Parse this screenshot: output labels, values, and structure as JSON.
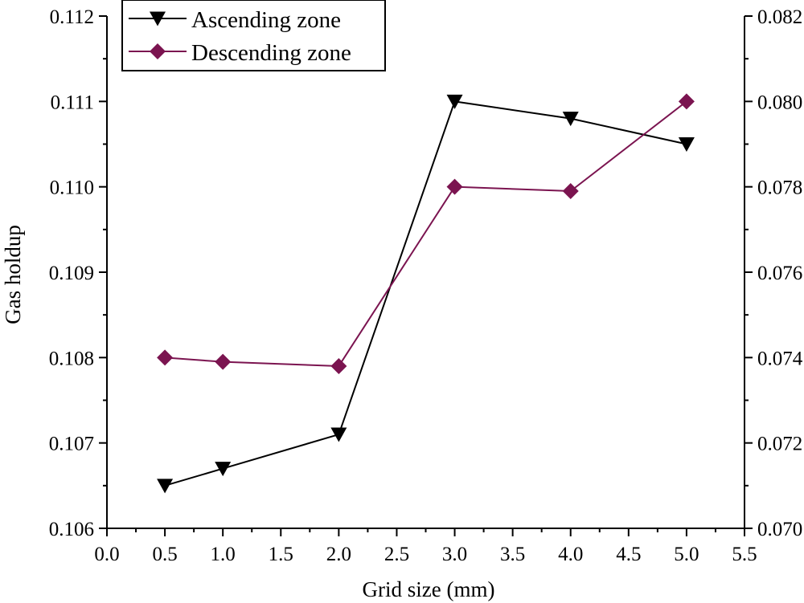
{
  "chart_data": {
    "type": "line",
    "xlabel": "Grid size (mm)",
    "ylabel": "Gas holdup",
    "y2label": "",
    "xlim": [
      0.0,
      5.5
    ],
    "ylim": [
      0.106,
      0.112
    ],
    "y2lim": [
      0.07,
      0.082
    ],
    "xticks": [
      "0.0",
      "0.5",
      "1.0",
      "1.5",
      "2.0",
      "2.5",
      "3.0",
      "3.5",
      "4.0",
      "4.5",
      "5.0",
      "5.5"
    ],
    "yticks": [
      "0.106",
      "0.107",
      "0.108",
      "0.109",
      "0.110",
      "0.111",
      "0.112"
    ],
    "y2ticks": [
      "0.070",
      "0.072",
      "0.074",
      "0.076",
      "0.078",
      "0.080",
      "0.082"
    ],
    "legend_position": "top-left",
    "grid": false,
    "series": [
      {
        "name": "Ascending zone",
        "axis": "left",
        "marker": "triangle-down",
        "color": "#000000",
        "x": [
          0.5,
          1.0,
          2.0,
          3.0,
          4.0,
          5.0
        ],
        "y": [
          0.1065,
          0.1067,
          0.1071,
          0.111,
          0.1108,
          0.1105
        ]
      },
      {
        "name": "Descending zone",
        "axis": "right",
        "marker": "diamond",
        "color": "#7b1450",
        "x": [
          0.5,
          1.0,
          2.0,
          3.0,
          4.0,
          5.0
        ],
        "y": [
          0.074,
          0.0739,
          0.0738,
          0.078,
          0.0779,
          0.08
        ]
      }
    ]
  }
}
